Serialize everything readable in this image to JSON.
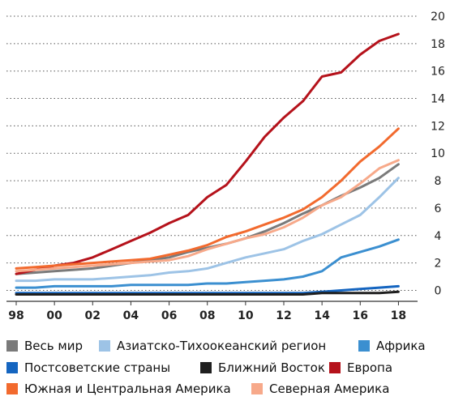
{
  "chart_data": {
    "type": "line",
    "title": "",
    "xlabel": "",
    "ylabel": "",
    "x": [
      1998,
      1999,
      2000,
      2001,
      2002,
      2003,
      2004,
      2005,
      2006,
      2007,
      2008,
      2009,
      2010,
      2011,
      2012,
      2013,
      2014,
      2015,
      2016,
      2017,
      2018
    ],
    "x_tick_values": [
      1998,
      2000,
      2002,
      2004,
      2006,
      2008,
      2010,
      2012,
      2014,
      2016,
      2018
    ],
    "x_tick_labels": [
      "98",
      "00",
      "02",
      "04",
      "06",
      "08",
      "10",
      "12",
      "14",
      "16",
      "18"
    ],
    "xlim": [
      1998,
      2019
    ],
    "y_tick_values": [
      0,
      2,
      4,
      6,
      8,
      10,
      12,
      14,
      16,
      18,
      20
    ],
    "y_tick_labels": [
      "0",
      "2",
      "4",
      "6",
      "8",
      "10",
      "12",
      "14",
      "16",
      "18",
      "20"
    ],
    "ylim": [
      -0.8,
      20
    ],
    "grid": "horizontal-dotted",
    "y_axis_position": "right",
    "legend_position": "bottom",
    "series": [
      {
        "name": "Весь мир",
        "color": "#7a7a7a",
        "values": [
          1.2,
          1.3,
          1.4,
          1.5,
          1.6,
          1.8,
          2.0,
          2.2,
          2.4,
          2.8,
          3.1,
          3.4,
          3.8,
          4.3,
          4.9,
          5.6,
          6.2,
          6.9,
          7.5,
          8.2,
          9.2
        ]
      },
      {
        "name": "Азиатско-Тихоокеанский регион",
        "color": "#9dc3e6",
        "values": [
          0.7,
          0.7,
          0.8,
          0.8,
          0.8,
          0.9,
          1.0,
          1.1,
          1.3,
          1.4,
          1.6,
          2.0,
          2.4,
          2.7,
          3.0,
          3.6,
          4.1,
          4.8,
          5.5,
          6.8,
          8.2
        ]
      },
      {
        "name": "Африка",
        "color": "#3b8fd0",
        "values": [
          0.2,
          0.2,
          0.3,
          0.3,
          0.3,
          0.3,
          0.4,
          0.4,
          0.4,
          0.4,
          0.5,
          0.5,
          0.6,
          0.7,
          0.8,
          1.0,
          1.4,
          2.4,
          2.8,
          3.2,
          3.7
        ]
      },
      {
        "name": "Постсоветские страны",
        "color": "#1565c0",
        "values": [
          -0.2,
          -0.2,
          -0.2,
          -0.2,
          -0.2,
          -0.2,
          -0.2,
          -0.2,
          -0.2,
          -0.2,
          -0.2,
          -0.2,
          -0.2,
          -0.2,
          -0.2,
          -0.2,
          -0.1,
          0.0,
          0.1,
          0.2,
          0.3
        ]
      },
      {
        "name": "Ближний Восток",
        "color": "#1f1f1f",
        "values": [
          -0.3,
          -0.3,
          -0.3,
          -0.3,
          -0.3,
          -0.3,
          -0.3,
          -0.3,
          -0.3,
          -0.3,
          -0.3,
          -0.3,
          -0.3,
          -0.3,
          -0.3,
          -0.3,
          -0.2,
          -0.2,
          -0.2,
          -0.2,
          -0.1
        ]
      },
      {
        "name": "Европа",
        "color": "#b5121b",
        "values": [
          1.2,
          1.5,
          1.8,
          2.0,
          2.4,
          3.0,
          3.6,
          4.2,
          4.9,
          5.5,
          6.8,
          7.7,
          9.4,
          11.2,
          12.6,
          13.8,
          15.6,
          15.9,
          17.2,
          18.2,
          18.7
        ]
      },
      {
        "name": "Южная и Центральная Америка",
        "color": "#f26a2e",
        "values": [
          1.6,
          1.7,
          1.8,
          1.9,
          2.0,
          2.1,
          2.2,
          2.3,
          2.6,
          2.9,
          3.3,
          3.9,
          4.3,
          4.8,
          5.3,
          5.9,
          6.8,
          8.0,
          9.4,
          10.5,
          11.8
        ]
      },
      {
        "name": "Северная Америка",
        "color": "#f7a98a",
        "values": [
          1.4,
          1.5,
          1.6,
          1.7,
          1.8,
          1.9,
          2.0,
          2.1,
          2.2,
          2.5,
          3.0,
          3.4,
          3.8,
          4.1,
          4.6,
          5.3,
          6.2,
          6.8,
          7.8,
          8.9,
          9.5
        ]
      }
    ]
  }
}
